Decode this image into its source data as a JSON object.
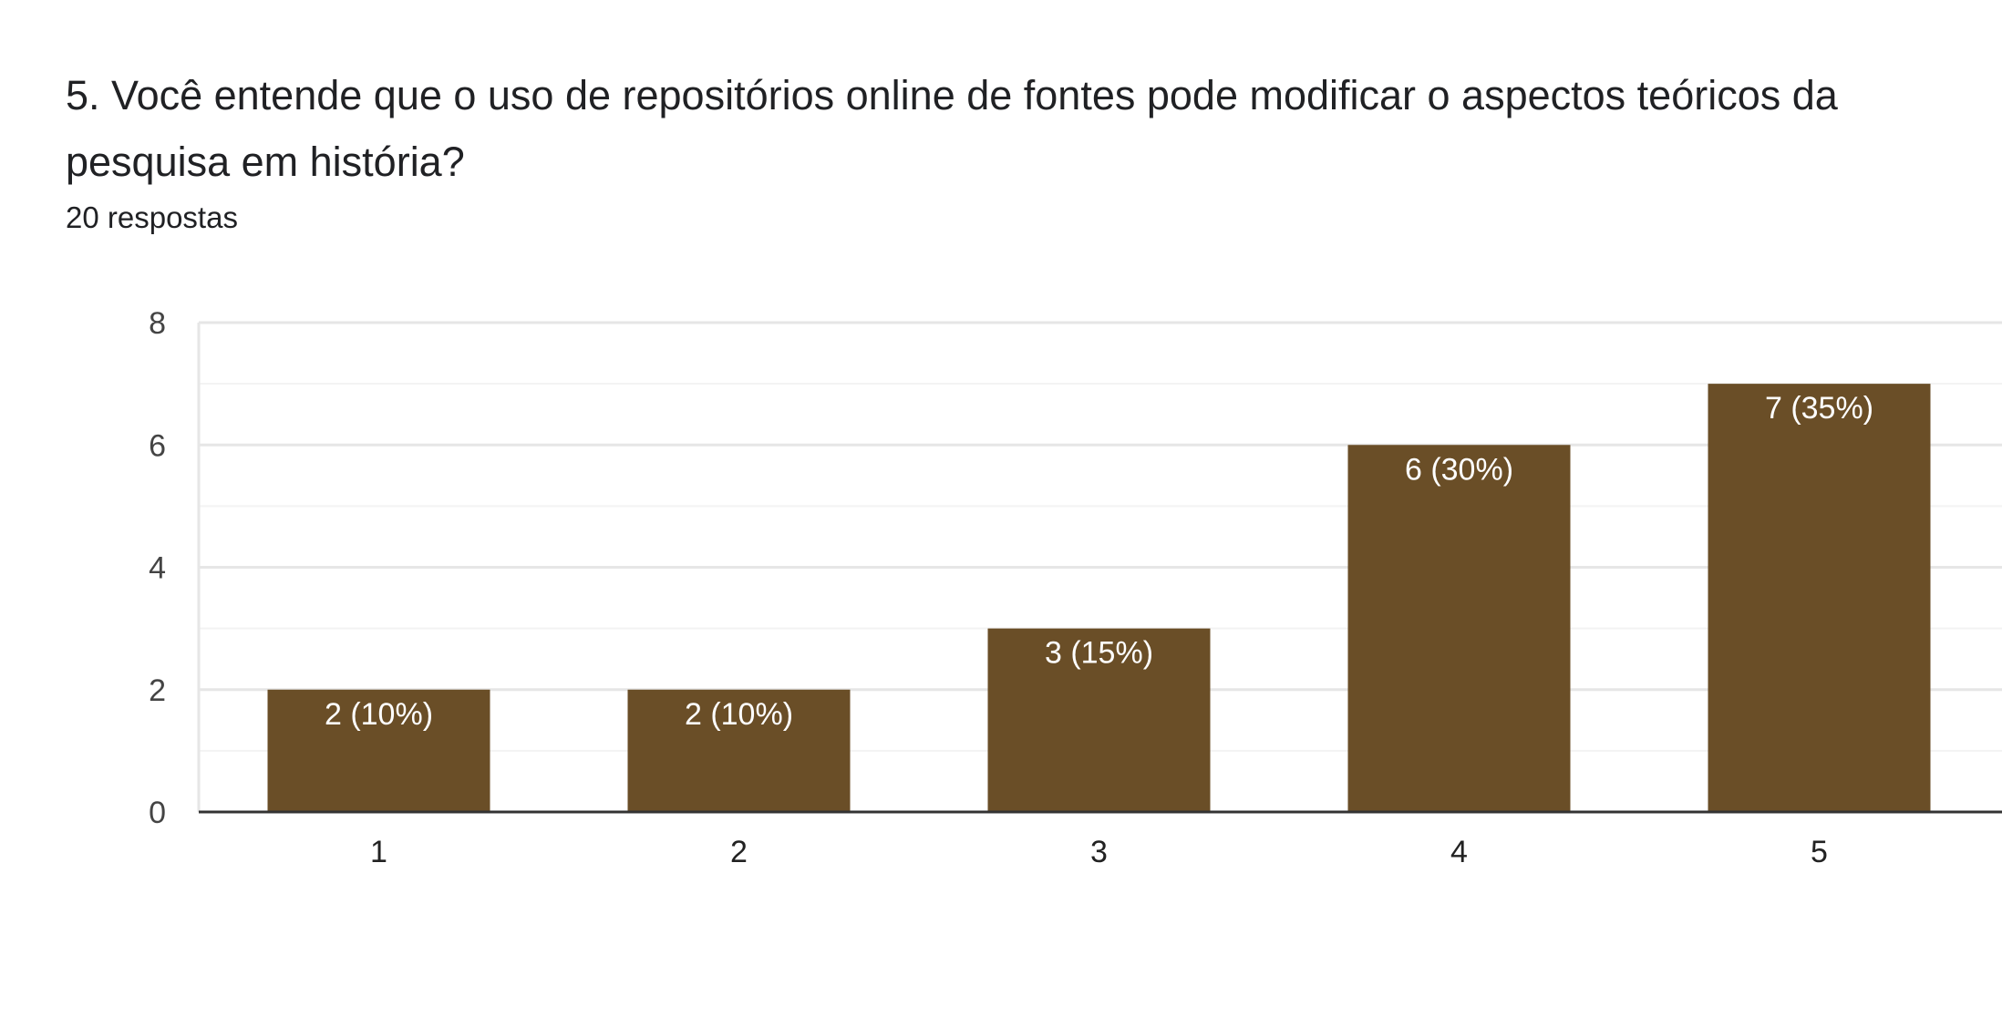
{
  "question": {
    "title": "5. Você entende que o uso de repositórios online de fontes pode modificar o aspectos teóricos da pesquisa em história?",
    "responses": "20 respostas"
  },
  "chart_data": {
    "type": "bar",
    "categories": [
      "1",
      "2",
      "3",
      "4",
      "5"
    ],
    "values": [
      2,
      2,
      3,
      6,
      7
    ],
    "data_labels": [
      "2 (10%)",
      "2 (10%)",
      "3 (15%)",
      "6 (30%)",
      "7 (35%)"
    ],
    "ylim": [
      0,
      8
    ],
    "yticks": [
      0,
      2,
      4,
      6,
      8
    ],
    "grid": true,
    "bar_color": "#6a4e27"
  }
}
